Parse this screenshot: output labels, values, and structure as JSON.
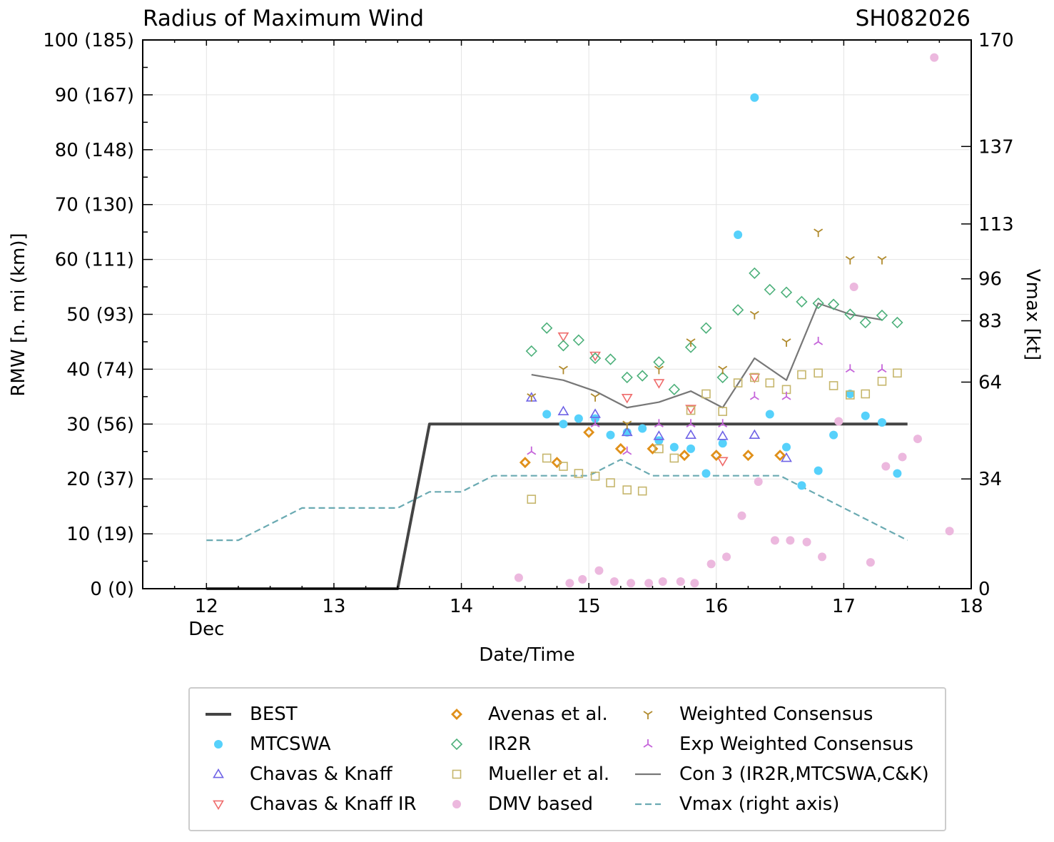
{
  "chart_data": {
    "type": "scatter",
    "title": "Radius of Maximum Wind",
    "storm_id": "SH082026",
    "xlabel": "Date/Time",
    "ylabel_left": "RMW [n. mi (km)]",
    "ylabel_right": "Vmax [kt]",
    "xlim": [
      11.5,
      18
    ],
    "ylim": [
      0,
      100
    ],
    "x_ticks": [
      {
        "value": 12,
        "label": "12",
        "sublabel": "Dec"
      },
      {
        "value": 13,
        "label": "13",
        "sublabel": ""
      },
      {
        "value": 14,
        "label": "14",
        "sublabel": ""
      },
      {
        "value": 15,
        "label": "15",
        "sublabel": ""
      },
      {
        "value": 16,
        "label": "16",
        "sublabel": ""
      },
      {
        "value": 17,
        "label": "17",
        "sublabel": ""
      },
      {
        "value": 18,
        "label": "18",
        "sublabel": ""
      }
    ],
    "y_ticks_left": [
      {
        "value": 0,
        "label": "0 (0)"
      },
      {
        "value": 10,
        "label": "10 (19)"
      },
      {
        "value": 20,
        "label": "20 (37)"
      },
      {
        "value": 30,
        "label": "30 (56)"
      },
      {
        "value": 40,
        "label": "40 (74)"
      },
      {
        "value": 50,
        "label": "50 (93)"
      },
      {
        "value": 60,
        "label": "60 (111)"
      },
      {
        "value": 70,
        "label": "70 (130)"
      },
      {
        "value": 80,
        "label": "80 (148)"
      },
      {
        "value": 90,
        "label": "90 (167)"
      },
      {
        "value": 100,
        "label": "100 (185)"
      }
    ],
    "vmax_axis": {
      "min": 0,
      "max": 170,
      "ticks": [
        0,
        34,
        64,
        83,
        96,
        113,
        137,
        170
      ]
    },
    "series": [
      {
        "name": "BEST",
        "marker": "line",
        "color": "#444444",
        "x": [
          12.0,
          13.5,
          13.75,
          17.5
        ],
        "y": [
          0,
          0,
          30,
          30
        ]
      },
      {
        "name": "MTCSWA",
        "marker": "circle",
        "color": "#56d1fb",
        "x": [
          14.67,
          14.8,
          14.92,
          15.05,
          15.17,
          15.3,
          15.42,
          15.55,
          15.67,
          15.8,
          15.92,
          16.05,
          16.17,
          16.3,
          16.42,
          16.55,
          16.67,
          16.8,
          16.92,
          17.05,
          17.17,
          17.3,
          17.42
        ],
        "y": [
          31.8,
          30.0,
          31.0,
          31.0,
          28.0,
          28.5,
          29.2,
          27.0,
          25.8,
          25.5,
          21.0,
          26.5,
          64.5,
          89.5,
          31.8,
          25.8,
          18.8,
          21.5,
          28.0,
          35.5,
          31.5,
          30.3,
          21.0
        ]
      },
      {
        "name": "Chavas & Knaff",
        "marker": "triangle-up",
        "color": "#6f63e6",
        "x": [
          14.55,
          14.8,
          15.05,
          15.3,
          15.55,
          15.8,
          16.05,
          16.3,
          16.55
        ],
        "y": [
          34.8,
          32.3,
          31.8,
          28.5,
          27.8,
          28.0,
          27.8,
          28.0,
          23.8
        ]
      },
      {
        "name": "Chavas & Knaff IR",
        "marker": "triangle-down",
        "color": "#ef6b6b",
        "x": [
          14.8,
          15.05,
          15.3,
          15.55,
          15.8,
          16.05,
          16.3
        ],
        "y": [
          46.0,
          42.5,
          34.8,
          37.5,
          32.8,
          23.3,
          38.5
        ]
      },
      {
        "name": "Avenas et al.",
        "marker": "diamond",
        "color": "#e0901a",
        "x": [
          14.5,
          14.75,
          15.0,
          15.25,
          15.5,
          15.75,
          16.0,
          16.25,
          16.5
        ],
        "y": [
          23.0,
          23.0,
          28.5,
          25.5,
          25.5,
          24.3,
          24.3,
          24.3,
          24.3
        ]
      },
      {
        "name": "IR2R",
        "marker": "diamond-open",
        "color": "#4cb07a",
        "x": [
          14.55,
          14.67,
          14.8,
          14.92,
          15.05,
          15.17,
          15.3,
          15.42,
          15.55,
          15.67,
          15.8,
          15.92,
          16.05,
          16.17,
          16.3,
          16.42,
          16.55,
          16.67,
          16.8,
          16.92,
          17.05,
          17.17,
          17.3,
          17.42
        ],
        "y": [
          43.3,
          47.5,
          44.3,
          45.3,
          42.0,
          41.8,
          38.5,
          38.8,
          41.3,
          36.3,
          44.0,
          47.5,
          38.5,
          50.8,
          57.5,
          54.5,
          54.0,
          52.3,
          52.0,
          51.8,
          50.0,
          48.5,
          49.8,
          48.5
        ]
      },
      {
        "name": "Mueller et al.",
        "marker": "square",
        "color": "#c6b66c",
        "x": [
          14.55,
          14.67,
          14.8,
          14.92,
          15.05,
          15.17,
          15.3,
          15.42,
          15.55,
          15.67,
          15.8,
          15.92,
          16.05,
          16.17,
          16.3,
          16.42,
          16.55,
          16.67,
          16.8,
          16.92,
          17.05,
          17.17,
          17.3,
          17.42
        ],
        "y": [
          16.3,
          23.8,
          22.3,
          21.0,
          20.5,
          19.3,
          18.0,
          17.8,
          25.5,
          23.8,
          32.5,
          35.5,
          32.3,
          37.5,
          38.5,
          37.5,
          36.3,
          39.0,
          39.3,
          37.0,
          35.3,
          35.5,
          37.8,
          39.3
        ]
      },
      {
        "name": "DMV based",
        "marker": "circle",
        "color": "#ecb8de",
        "x": [
          14.45,
          14.85,
          14.95,
          15.08,
          15.2,
          15.33,
          15.47,
          15.58,
          15.72,
          15.83,
          15.96,
          16.08,
          16.2,
          16.33,
          16.46,
          16.58,
          16.71,
          16.83,
          16.96,
          17.08,
          17.21,
          17.33,
          17.46,
          17.58,
          17.71,
          17.83
        ],
        "y": [
          2.0,
          1.0,
          1.7,
          3.3,
          1.3,
          1.0,
          1.0,
          1.3,
          1.3,
          1.0,
          4.5,
          5.8,
          13.3,
          19.5,
          8.8,
          8.8,
          8.5,
          5.8,
          30.5,
          55.0,
          4.8,
          22.3,
          24.0,
          27.3,
          96.8,
          10.5
        ]
      },
      {
        "name": "Weighted Consensus",
        "marker": "tri-down",
        "color": "#b08a2c",
        "x": [
          14.55,
          14.8,
          15.05,
          15.3,
          15.55,
          15.8,
          16.05,
          16.3,
          16.55,
          16.8,
          17.05,
          17.3
        ],
        "y": [
          35.0,
          40.0,
          35.0,
          30.0,
          40.0,
          45.0,
          40.0,
          50.0,
          45.0,
          65.0,
          60.0,
          60.0
        ]
      },
      {
        "name": "Exp Weighted Consensus",
        "marker": "tri-up",
        "color": "#c564da",
        "x": [
          14.55,
          15.05,
          15.3,
          15.55,
          15.8,
          16.05,
          16.3,
          16.55,
          16.8,
          17.05,
          17.3
        ],
        "y": [
          25.0,
          30.0,
          25.0,
          30.0,
          30.0,
          30.0,
          35.0,
          35.0,
          45.0,
          40.0,
          40.0
        ]
      },
      {
        "name": "Con 3 (IR2R,MTCSWA,C&K)",
        "marker": "line",
        "color": "#777777",
        "x": [
          14.55,
          14.8,
          15.05,
          15.3,
          15.55,
          15.8,
          16.05,
          16.3,
          16.55,
          16.8,
          17.05,
          17.3
        ],
        "y": [
          39.0,
          38.0,
          36.0,
          33.0,
          34.0,
          36.0,
          33.0,
          42.0,
          38.0,
          52.0,
          50.0,
          49.0
        ]
      },
      {
        "name": "Vmax (right axis)",
        "marker": "dashed",
        "color": "#6aaab2",
        "x": [
          12.0,
          12.25,
          12.75,
          13.5,
          13.75,
          14.0,
          14.25,
          15.0,
          15.25,
          15.5,
          16.5,
          17.5
        ],
        "vmax": [
          15,
          15,
          25,
          25,
          30,
          30,
          35,
          35,
          40,
          35,
          35,
          15
        ]
      }
    ]
  }
}
